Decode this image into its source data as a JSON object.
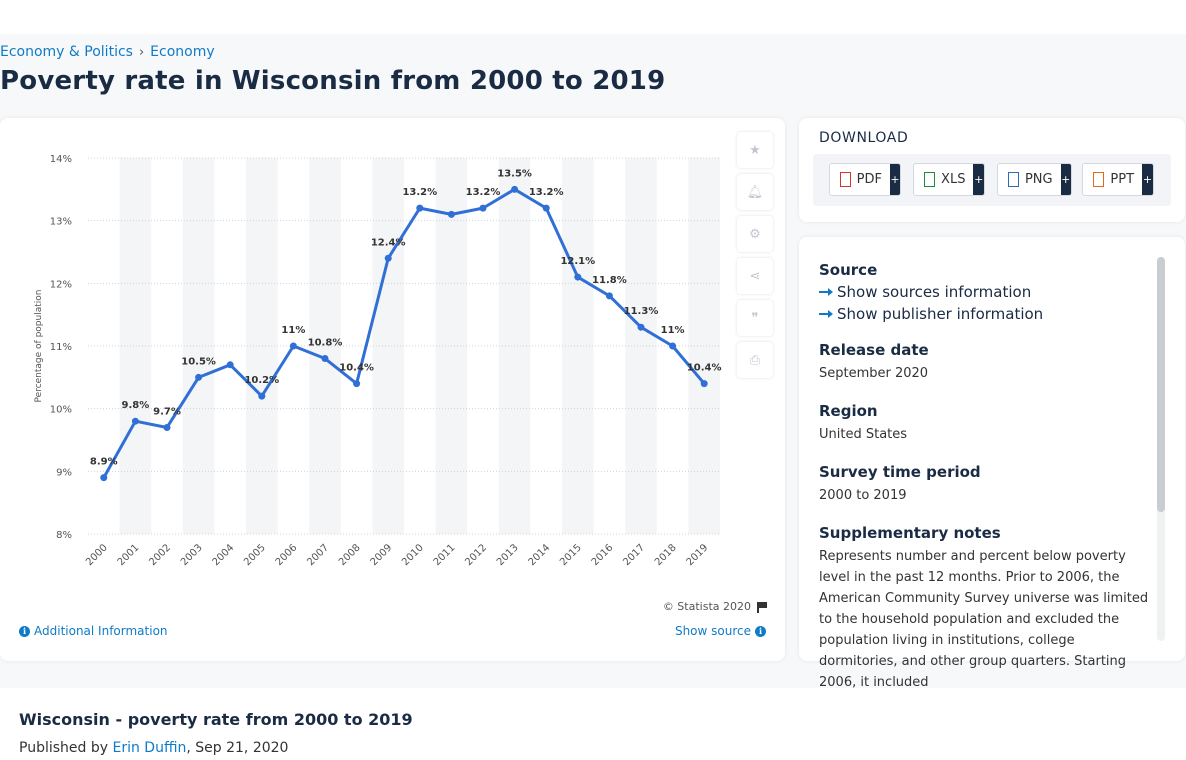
{
  "breadcrumb": {
    "items": [
      "Economy & Politics",
      "Economy"
    ],
    "separator": "›"
  },
  "page_title": "Poverty rate in Wisconsin from 2000 to 2019",
  "chart_footer": {
    "copyright": "© Statista 2020",
    "additional_info": "Additional Information",
    "show_source": "Show source"
  },
  "tools": [
    "star-icon",
    "bell-icon",
    "gear-icon",
    "share-icon",
    "quote-icon",
    "print-icon"
  ],
  "download": {
    "title": "DOWNLOAD",
    "buttons": [
      {
        "label": "PDF",
        "color": "#d9342b"
      },
      {
        "label": "XLS",
        "color": "#1f8a3a"
      },
      {
        "label": "PNG",
        "color": "#2a6db5"
      },
      {
        "label": "PPT",
        "color": "#e06a1b"
      }
    ],
    "plus": "+"
  },
  "info": {
    "source_heading": "Source",
    "show_sources": "Show sources information",
    "show_publisher": "Show publisher information",
    "release_heading": "Release date",
    "release_value": "September 2020",
    "region_heading": "Region",
    "region_value": "United States",
    "period_heading": "Survey time period",
    "period_value": "2000 to 2019",
    "notes_heading": "Supplementary notes",
    "notes_value": "Represents number and percent below poverty level in the past 12 months. Prior to 2006, the American Community Survey universe was limited to the household population and excluded the population living in institutions, college dormitories, and other group quarters. Starting 2006, it included"
  },
  "bottom": {
    "title": "Wisconsin - poverty rate from 2000 to 2019",
    "published_prefix": "Published by",
    "author": "Erin Duffin",
    "date": ", Sep 21, 2020"
  },
  "colors": {
    "line": "#2f6fd6",
    "accent": "#0f7bc7",
    "title": "#1a2b44"
  },
  "chart_data": {
    "type": "line",
    "x": [
      "2000",
      "2001",
      "2002",
      "2003",
      "2004",
      "2005",
      "2006",
      "2007",
      "2008",
      "2009",
      "2010",
      "2011",
      "2012",
      "2013",
      "2014",
      "2015",
      "2016",
      "2017",
      "2018",
      "2019"
    ],
    "series": [
      {
        "values": [
          8.9,
          9.8,
          9.7,
          10.5,
          10.7,
          10.2,
          11,
          10.8,
          10.4,
          12.4,
          13.2,
          13.1,
          13.2,
          13.5,
          13.2,
          12.1,
          11.8,
          11.3,
          11,
          10.4
        ]
      }
    ],
    "data_labels": [
      "8.9%",
      "9.8%",
      "9.7%",
      "10.5%",
      "",
      "10.2%",
      "11%",
      "10.8%",
      "10.4%",
      "12.4%",
      "13.2%",
      "",
      "13.2%",
      "13.5%",
      "13.2%",
      "12.1%",
      "11.8%",
      "11.3%",
      "11%",
      "10.4%"
    ],
    "ylabel": "Percentage of population",
    "ylim": [
      8,
      14
    ],
    "yticks": [
      "8%",
      "9%",
      "10%",
      "11%",
      "12%",
      "13%",
      "14%"
    ],
    "grid": true,
    "legend": "none"
  }
}
